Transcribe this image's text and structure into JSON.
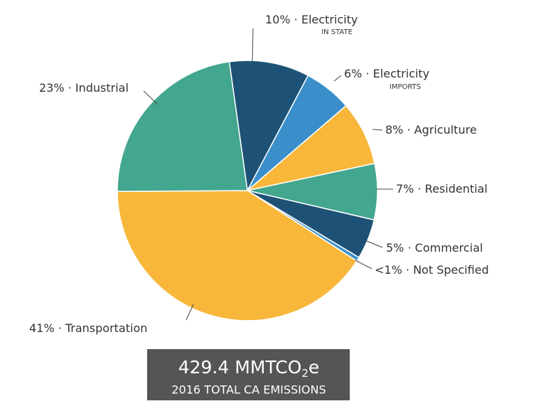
{
  "chart_data": {
    "type": "pie",
    "categories": [
      "Electricity",
      "Electricity",
      "Agriculture",
      "Residential",
      "Commercial",
      "Not Specified",
      "Transportation",
      "Industrial"
    ],
    "sublabels": [
      "IN STATE",
      "IMPORTS",
      null,
      null,
      null,
      null,
      null,
      null
    ],
    "values": [
      10,
      6,
      8,
      7,
      5,
      0.5,
      41,
      23
    ],
    "value_labels": [
      "10%",
      "6%",
      "8%",
      "7%",
      "5%",
      "<1%",
      "41%",
      "23%"
    ],
    "separator": "·",
    "colors": [
      "#1d5276",
      "#3a8fca",
      "#f8b73a",
      "#43a68e",
      "#1d5276",
      "#3a8fca",
      "#f8b73a",
      "#43a68e"
    ],
    "total": {
      "value": 429.4,
      "unit": "MMTCO",
      "unit_sub": "2",
      "unit_suffix": "e",
      "caption": "2016 TOTAL CA EMISSIONS"
    }
  }
}
